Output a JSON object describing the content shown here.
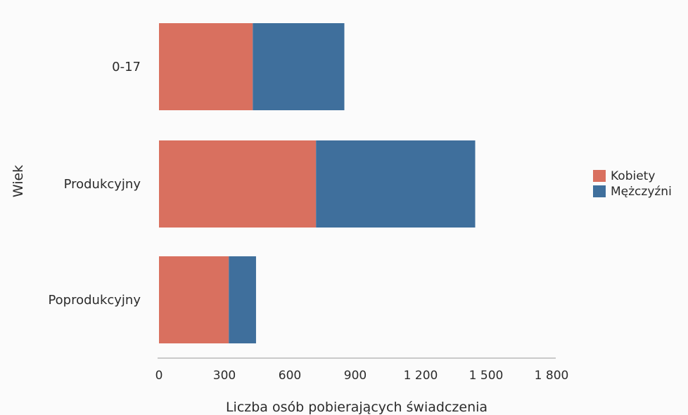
{
  "chart_data": {
    "type": "bar",
    "orientation": "horizontal",
    "stacked": true,
    "title": "",
    "xlabel": "Liczba osób pobierających świadczenia",
    "ylabel": "Wiek",
    "categories": [
      "0-17",
      "Produkcyjny",
      "Poprodukcyjny"
    ],
    "series": [
      {
        "name": "Kobiety",
        "values": [
          430,
          720,
          320
        ],
        "color": "#d9705f"
      },
      {
        "name": "Mężczyźni",
        "values": [
          420,
          730,
          125
        ],
        "color": "#3f6f9c"
      }
    ],
    "xlim": [
      0,
      1800
    ],
    "xticks": [
      0,
      300,
      600,
      900,
      1200,
      1500,
      1800
    ],
    "xtick_labels": [
      "0",
      "300",
      "600",
      "900",
      "1 200",
      "1 500",
      "1 800"
    ],
    "grid": false,
    "legend_position": "right"
  }
}
